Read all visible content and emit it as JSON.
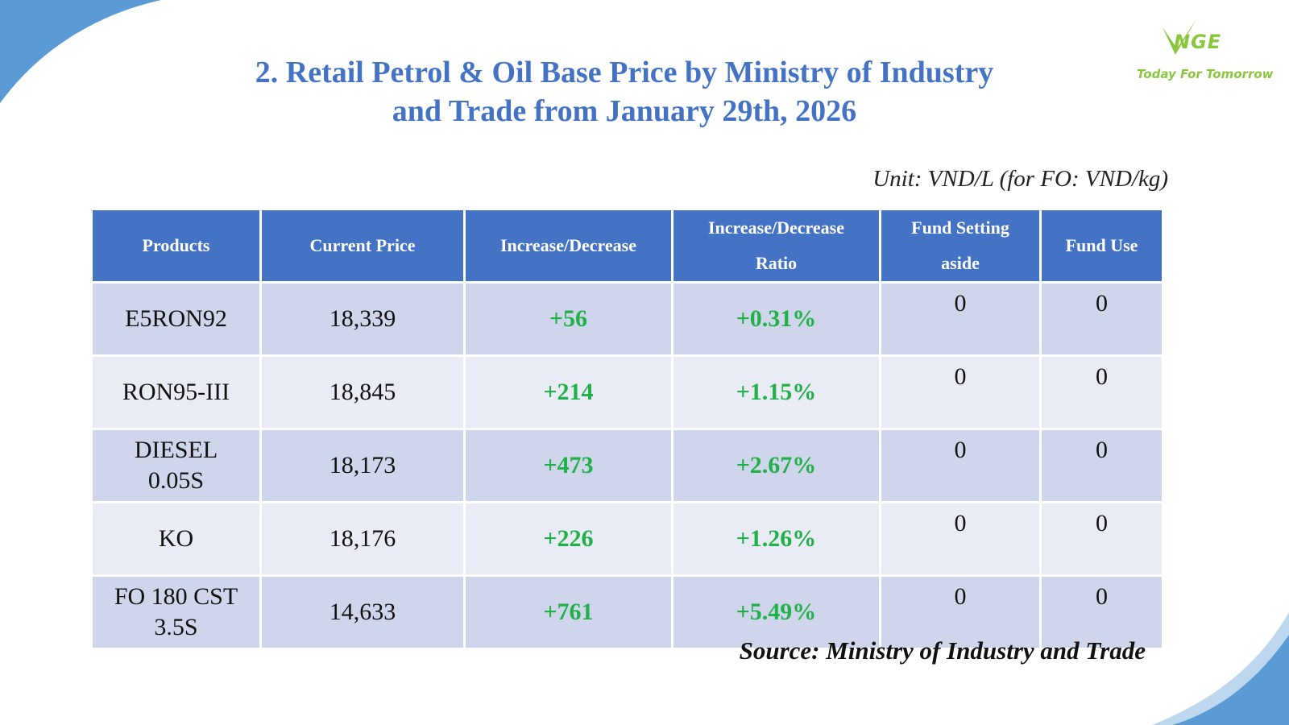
{
  "title": {
    "line1": "2. Retail Petrol & Oil Base Price by Ministry of Industry",
    "line2": "and Trade from January 29th, 2026"
  },
  "logo": {
    "word": "NGE",
    "tagline": "Today For Tomorrow",
    "color": "#8bc63f"
  },
  "unit": "Unit: VND/L (for FO: VND/kg)",
  "source": "Source: Ministry of Industry and Trade",
  "colors": {
    "header_bg": "#4472c4",
    "row_odd_bg": "#cfd5ea",
    "row_even_bg": "#e9ebf5",
    "increase_text": "#22b04a",
    "title_text": "#4472c4",
    "decor_blue": "#5b9bd5"
  },
  "table": {
    "headers": {
      "products": "Products",
      "current_price": "Current Price",
      "increase_decrease": "Increase/Decrease",
      "ratio_line1": "Increase/Decrease",
      "ratio_line2": "Ratio",
      "fund_setting_line1": "Fund Setting",
      "fund_setting_line2": "aside",
      "fund_use": "Fund Use"
    },
    "rows": [
      {
        "product_line1": "E5RON92",
        "product_line2": "",
        "price": "18,339",
        "change": "+56",
        "ratio": "+0.31%",
        "fund_setting": "0",
        "fund_use": "0"
      },
      {
        "product_line1": "RON95-III",
        "product_line2": "",
        "price": "18,845",
        "change": "+214",
        "ratio": "+1.15%",
        "fund_setting": "0",
        "fund_use": "0"
      },
      {
        "product_line1": "DIESEL",
        "product_line2": "0.05S",
        "price": "18,173",
        "change": "+473",
        "ratio": "+2.67%",
        "fund_setting": "0",
        "fund_use": "0"
      },
      {
        "product_line1": "KO",
        "product_line2": "",
        "price": "18,176",
        "change": "+226",
        "ratio": "+1.26%",
        "fund_setting": "0",
        "fund_use": "0"
      },
      {
        "product_line1": "FO 180 CST",
        "product_line2": "3.5S",
        "price": "14,633",
        "change": "+761",
        "ratio": "+5.49%",
        "fund_setting": "0",
        "fund_use": "0"
      }
    ]
  }
}
